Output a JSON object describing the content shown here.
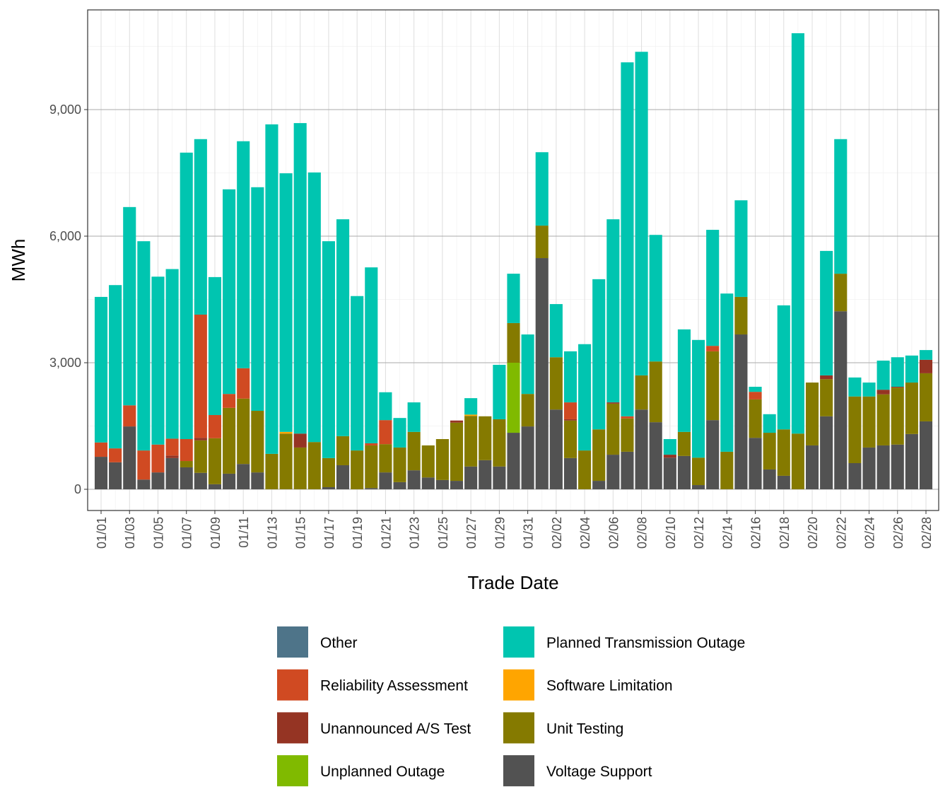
{
  "chart_data": {
    "type": "bar",
    "stacked": true,
    "title": "",
    "xlabel": "Trade Date",
    "ylabel": "MWh",
    "ylim": [
      0,
      11000
    ],
    "yticks": [
      0,
      3000,
      6000,
      9000
    ],
    "ytick_labels": [
      "0",
      "3,000",
      "6,000",
      "9,000"
    ],
    "grid": true,
    "legend_position": "bottom",
    "categories": [
      "01/01",
      "01/02",
      "01/03",
      "01/04",
      "01/05",
      "01/06",
      "01/07",
      "01/08",
      "01/09",
      "01/10",
      "01/11",
      "01/12",
      "01/13",
      "01/14",
      "01/15",
      "01/16",
      "01/17",
      "01/18",
      "01/19",
      "01/20",
      "01/21",
      "01/22",
      "01/23",
      "01/24",
      "01/25",
      "01/26",
      "01/27",
      "01/28",
      "01/29",
      "01/30",
      "01/31",
      "02/01",
      "02/02",
      "02/03",
      "02/04",
      "02/05",
      "02/06",
      "02/07",
      "02/08",
      "02/09",
      "02/10",
      "02/11",
      "02/12",
      "02/13",
      "02/14",
      "02/15",
      "02/16",
      "02/17",
      "02/18",
      "02/19",
      "02/20",
      "02/21",
      "02/22",
      "02/23",
      "02/24",
      "02/25",
      "02/26",
      "02/27",
      "02/28"
    ],
    "xtick_labels": [
      "01/01",
      "01/03",
      "01/05",
      "01/07",
      "01/09",
      "01/11",
      "01/13",
      "01/15",
      "01/17",
      "01/19",
      "01/21",
      "01/23",
      "01/25",
      "01/27",
      "01/29",
      "01/31",
      "02/02",
      "02/04",
      "02/06",
      "02/08",
      "02/10",
      "02/12",
      "02/14",
      "02/16",
      "02/18",
      "02/20",
      "02/22",
      "02/24",
      "02/26",
      "02/28"
    ],
    "series": [
      {
        "name": "Other",
        "color": "#4E7489",
        "values": [
          0,
          0,
          0,
          0,
          0,
          0,
          0,
          0,
          0,
          0,
          0,
          0,
          0,
          0,
          0,
          0,
          0,
          0,
          0,
          0,
          0,
          0,
          0,
          0,
          0,
          0,
          0,
          0,
          0,
          0,
          0,
          0,
          0,
          0,
          0,
          0,
          0,
          0,
          0,
          0,
          0,
          0,
          0,
          0,
          0,
          0,
          0,
          0,
          0,
          0,
          0,
          0,
          0,
          0,
          0,
          0,
          0,
          0,
          0
        ]
      },
      {
        "name": "Planned Transmission Outage",
        "color": "#00C5B0",
        "values": [
          3450,
          3870,
          4700,
          4960,
          3980,
          4020,
          6790,
          4160,
          3270,
          4850,
          5380,
          5300,
          7810,
          6130,
          7360,
          6390,
          5140,
          5140,
          3660,
          4170,
          660,
          700,
          700,
          0,
          0,
          0,
          390,
          0,
          1290,
          1170,
          1410,
          1740,
          1260,
          1210,
          2520,
          3560,
          4340,
          8390,
          7670,
          3000,
          370,
          2430,
          2790,
          2750,
          3750,
          2290,
          120,
          440,
          2940,
          9490,
          0,
          2950,
          3190,
          450,
          330,
          690,
          700,
          640,
          230
        ]
      },
      {
        "name": "Reliability Assessment",
        "color": "#D04A22",
        "values": [
          340,
          330,
          500,
          690,
          660,
          400,
          520,
          2920,
          550,
          330,
          720,
          0,
          0,
          0,
          0,
          0,
          0,
          0,
          0,
          50,
          570,
          0,
          0,
          0,
          0,
          0,
          0,
          0,
          0,
          0,
          0,
          0,
          0,
          400,
          0,
          0,
          0,
          50,
          0,
          0,
          0,
          0,
          0,
          130,
          0,
          0,
          180,
          0,
          0,
          0,
          0,
          0,
          0,
          0,
          0,
          0,
          0,
          0,
          0
        ]
      },
      {
        "name": "Software Limitation",
        "color": "#FFA500",
        "values": [
          0,
          0,
          0,
          0,
          0,
          0,
          0,
          0,
          0,
          0,
          0,
          0,
          0,
          40,
          0,
          0,
          0,
          0,
          0,
          0,
          0,
          0,
          0,
          0,
          0,
          0,
          30,
          0,
          0,
          0,
          0,
          0,
          0,
          0,
          0,
          0,
          0,
          0,
          0,
          0,
          0,
          0,
          0,
          0,
          0,
          0,
          0,
          0,
          0,
          0,
          0,
          0,
          0,
          0,
          0,
          0,
          0,
          0,
          0
        ]
      },
      {
        "name": "Unannounced A/S Test",
        "color": "#953423",
        "values": [
          0,
          0,
          0,
          0,
          0,
          60,
          0,
          60,
          0,
          0,
          0,
          0,
          0,
          0,
          330,
          0,
          0,
          0,
          0,
          0,
          0,
          0,
          0,
          0,
          0,
          50,
          0,
          0,
          0,
          0,
          0,
          0,
          0,
          30,
          0,
          0,
          30,
          0,
          0,
          0,
          70,
          0,
          0,
          0,
          0,
          0,
          0,
          0,
          0,
          0,
          0,
          90,
          0,
          0,
          0,
          110,
          20,
          0,
          320
        ]
      },
      {
        "name": "Unit Testing",
        "color": "#857A00",
        "values": [
          0,
          0,
          0,
          0,
          0,
          0,
          150,
          770,
          1090,
          1560,
          1550,
          1460,
          840,
          1320,
          990,
          1120,
          690,
          690,
          920,
          1010,
          670,
          820,
          910,
          760,
          970,
          1380,
          1200,
          1040,
          1120,
          940,
          770,
          770,
          1240,
          890,
          920,
          1220,
          1210,
          790,
          810,
          1440,
          0,
          570,
          650,
          1630,
          890,
          890,
          910,
          870,
          1100,
          1320,
          1490,
          880,
          890,
          1580,
          1210,
          1210,
          1350,
          1220,
          1140
        ]
      },
      {
        "name": "Unplanned Outage",
        "color": "#80BA00",
        "values": [
          0,
          0,
          0,
          0,
          0,
          0,
          0,
          0,
          0,
          0,
          0,
          0,
          0,
          0,
          0,
          0,
          0,
          0,
          0,
          0,
          0,
          0,
          0,
          0,
          0,
          0,
          0,
          0,
          0,
          1660,
          0,
          0,
          0,
          0,
          0,
          0,
          0,
          0,
          0,
          0,
          0,
          0,
          0,
          0,
          0,
          0,
          0,
          0,
          0,
          0,
          0,
          0,
          0,
          0,
          0,
          0,
          0,
          0,
          0
        ]
      },
      {
        "name": "Voltage Support",
        "color": "#525252",
        "values": [
          770,
          640,
          1490,
          230,
          400,
          740,
          520,
          390,
          120,
          370,
          600,
          400,
          0,
          0,
          0,
          0,
          50,
          570,
          0,
          30,
          400,
          170,
          450,
          280,
          220,
          200,
          540,
          690,
          540,
          1340,
          1490,
          5480,
          1890,
          740,
          0,
          200,
          820,
          890,
          1890,
          1590,
          750,
          790,
          100,
          1640,
          0,
          3670,
          1220,
          470,
          320,
          0,
          1040,
          1730,
          4220,
          620,
          990,
          1040,
          1060,
          1310,
          1610
        ]
      }
    ]
  }
}
